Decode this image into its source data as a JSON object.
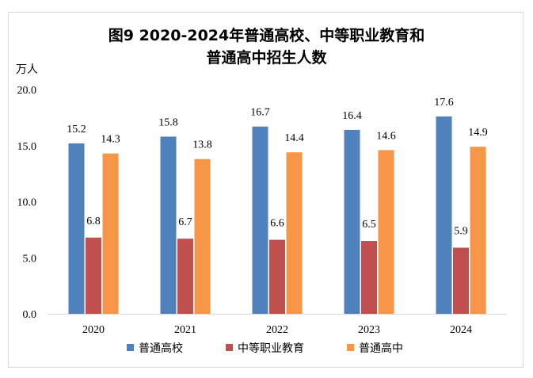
{
  "chart_data": {
    "type": "bar",
    "title_line1": "图9  2020-2024年普通高校、中等职业教育和",
    "title_line2": "普通高中招生人数",
    "ylabel": "万人",
    "categories": [
      "2020",
      "2021",
      "2022",
      "2023",
      "2024"
    ],
    "ylim": [
      0,
      20
    ],
    "yticks": [
      "0.0",
      "5.0",
      "10.0",
      "15.0",
      "20.0"
    ],
    "grid": false,
    "legend_position": "bottom",
    "series": [
      {
        "name": "普通高校",
        "color": "#4F81BD",
        "values": [
          15.2,
          15.8,
          16.7,
          16.4,
          17.6
        ]
      },
      {
        "name": "中等职业教育",
        "color": "#C0504D",
        "values": [
          6.8,
          6.7,
          6.6,
          6.5,
          5.9
        ]
      },
      {
        "name": "普通高中",
        "color": "#F79646",
        "values": [
          14.3,
          13.8,
          14.4,
          14.6,
          14.9
        ]
      }
    ]
  }
}
